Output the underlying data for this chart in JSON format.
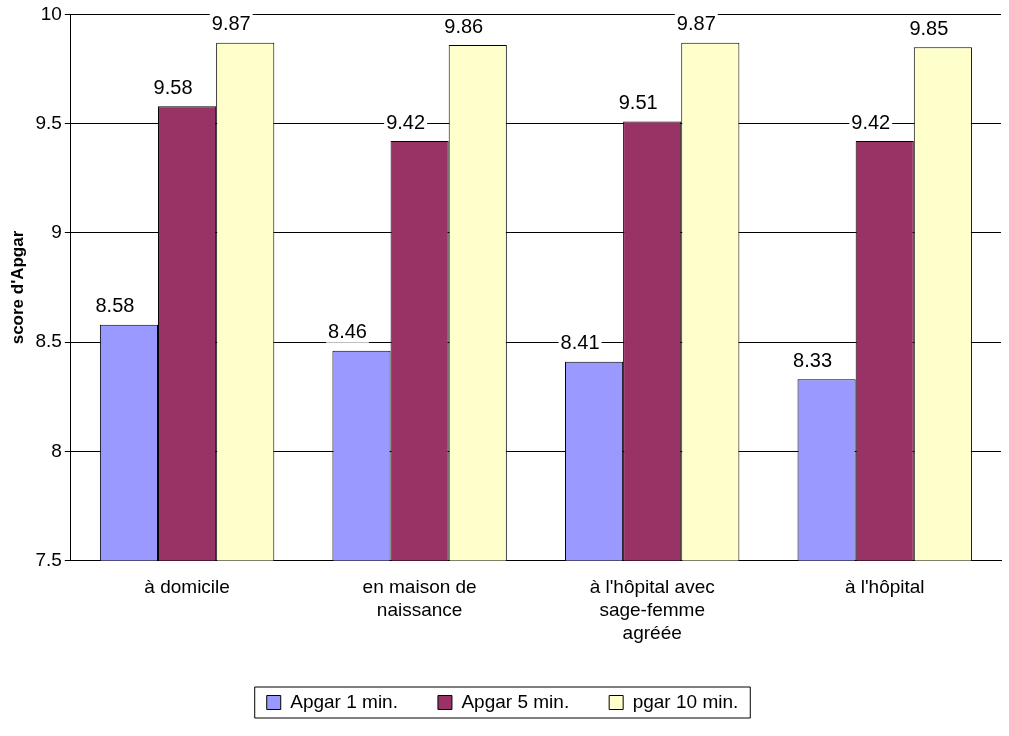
{
  "chart_data": {
    "type": "bar",
    "ylabel": "score d'Apgar",
    "categories": [
      "à domicile",
      "en maison de naissance",
      "à l'hôpital avec sage-femme agréée",
      "à l'hôpital"
    ],
    "series": [
      {
        "name": "Apgar 1 min.",
        "color": "#9999ff",
        "values": [
          8.58,
          8.46,
          8.41,
          8.33
        ]
      },
      {
        "name": "Apgar 5 min.",
        "color": "#993366",
        "values": [
          9.58,
          9.42,
          9.51,
          9.42
        ]
      },
      {
        "name": "pgar 10 min.",
        "color": "#ffffcc",
        "values": [
          9.87,
          9.86,
          9.87,
          9.85
        ]
      }
    ],
    "ylim": [
      7.5,
      10
    ],
    "yticks": [
      7.5,
      8,
      8.5,
      9,
      9.5,
      10
    ],
    "grid": "y",
    "legend": "bottom",
    "data_labels": true
  }
}
